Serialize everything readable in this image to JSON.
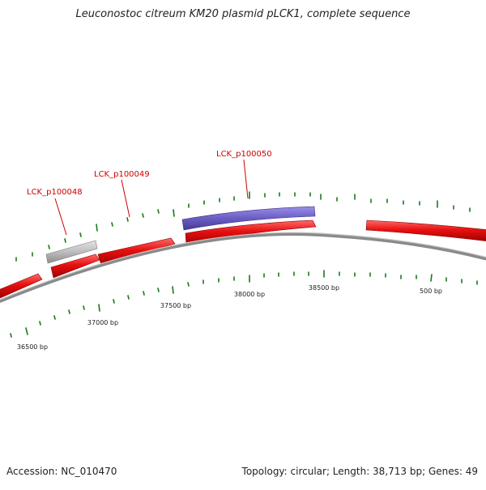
{
  "title": "Leuconostoc citreum KM20 plasmid pLCK1, complete sequence",
  "accession": "Accession: NC_010470",
  "summary": "Topology: circular; Length: 38,713 bp; Genes: 49",
  "colors": {
    "backbone": "#888888",
    "gene_forward": "#e81010",
    "gene_selected": "#6e62c8",
    "gene_other": "#bdbdbd",
    "tick": "#1a7a1a",
    "label": "#cc0000"
  },
  "gene_labels": [
    "LCK_p100048",
    "LCK_p100049",
    "LCK_p100050"
  ],
  "scale_labels": [
    "36500 bp",
    "37000 bp",
    "37500 bp",
    "38000 bp",
    "38500 bp",
    "500 bp"
  ]
}
